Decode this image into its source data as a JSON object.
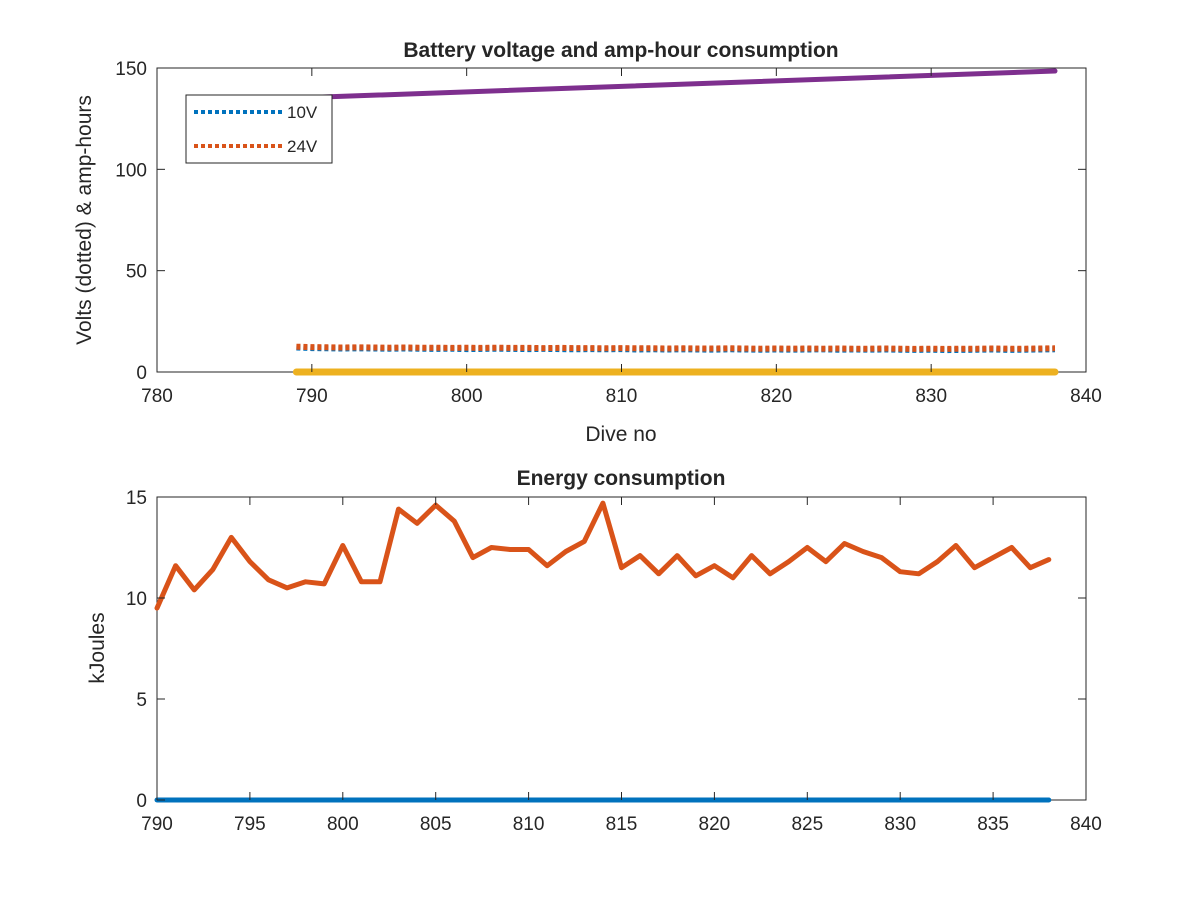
{
  "chart_data": [
    {
      "type": "line",
      "title": "Battery voltage and amp-hour consumption",
      "xlabel": "Dive no",
      "ylabel": "Volts (dotted) & amp-hours",
      "xlim": [
        780,
        840
      ],
      "ylim": [
        0,
        150
      ],
      "xticks": [
        780,
        790,
        800,
        810,
        820,
        830,
        840
      ],
      "yticks": [
        0,
        50,
        100,
        150
      ],
      "grid": false,
      "legend": {
        "location": "top-left",
        "entries": [
          {
            "label": "10V",
            "color": "#0072BD",
            "style": "dotted"
          },
          {
            "label": "24V",
            "color": "#D95319",
            "style": "dotted"
          }
        ]
      },
      "series": [
        {
          "name": "10V",
          "color": "#0072BD",
          "style": "dotted",
          "x": [
            789,
            790,
            791,
            792,
            793,
            794,
            795,
            796,
            797,
            798,
            799,
            800,
            801,
            802,
            803,
            804,
            805,
            806,
            807,
            808,
            809,
            810,
            811,
            812,
            813,
            814,
            815,
            816,
            817,
            818,
            819,
            820,
            821,
            822,
            823,
            824,
            825,
            826,
            827,
            828,
            829,
            830,
            831,
            832,
            833,
            834,
            835,
            836,
            837,
            838
          ],
          "values": [
            12.1,
            11.8,
            11.7,
            11.6,
            11.7,
            11.6,
            11.5,
            11.6,
            11.5,
            11.4,
            11.5,
            11.3,
            11.4,
            11.5,
            11.4,
            11.3,
            11.4,
            11.3,
            11.2,
            11.3,
            11.2,
            11.3,
            11.1,
            11.2,
            11.1,
            11.2,
            11.1,
            11.0,
            11.2,
            11.1,
            11.0,
            11.1,
            11.0,
            11.1,
            11.2,
            11.0,
            11.1,
            11.0,
            11.1,
            11.0,
            10.9,
            11.0,
            10.8,
            10.9,
            11.0,
            11.1,
            10.9,
            11.0,
            11.1,
            11.2
          ]
        },
        {
          "name": "24V",
          "color": "#D95319",
          "style": "dotted",
          "x": [
            789,
            790,
            791,
            792,
            793,
            794,
            795,
            796,
            797,
            798,
            799,
            800,
            801,
            802,
            803,
            804,
            805,
            806,
            807,
            808,
            809,
            810,
            811,
            812,
            813,
            814,
            815,
            816,
            817,
            818,
            819,
            820,
            821,
            822,
            823,
            824,
            825,
            826,
            827,
            828,
            829,
            830,
            831,
            832,
            833,
            834,
            835,
            836,
            837,
            838
          ],
          "values": [
            12.5,
            12.3,
            12.2,
            12.1,
            12.2,
            12.1,
            12.0,
            12.1,
            12.0,
            12.0,
            11.9,
            12.0,
            11.9,
            12.0,
            11.9,
            11.9,
            11.8,
            11.9,
            11.8,
            11.8,
            11.7,
            11.8,
            11.7,
            11.7,
            11.6,
            11.7,
            11.6,
            11.6,
            11.7,
            11.6,
            11.5,
            11.6,
            11.5,
            11.6,
            11.5,
            11.6,
            11.5,
            11.5,
            11.6,
            11.5,
            11.4,
            11.5,
            11.4,
            11.5,
            11.5,
            11.6,
            11.5,
            11.5,
            11.6,
            11.7
          ]
        },
        {
          "color": "#EDB120",
          "style": "solid",
          "x": [
            789,
            838
          ],
          "values": [
            0,
            0
          ]
        },
        {
          "color": "#7E2F8E",
          "style": "solid",
          "x": [
            790,
            838
          ],
          "values": [
            135.5,
            148.5
          ]
        }
      ]
    },
    {
      "type": "line",
      "title": "Energy consumption",
      "xlabel": "",
      "ylabel": "kJoules",
      "xlim": [
        790,
        840
      ],
      "ylim": [
        0,
        15
      ],
      "xticks": [
        790,
        795,
        800,
        805,
        810,
        815,
        820,
        825,
        830,
        835,
        840
      ],
      "yticks": [
        0,
        5,
        10,
        15
      ],
      "grid": false,
      "series": [
        {
          "color": "#D95319",
          "style": "solid",
          "x": [
            790,
            791,
            792,
            793,
            794,
            795,
            796,
            797,
            798,
            799,
            800,
            801,
            802,
            803,
            804,
            805,
            806,
            807,
            808,
            809,
            810,
            811,
            812,
            813,
            814,
            815,
            816,
            817,
            818,
            819,
            820,
            821,
            822,
            823,
            824,
            825,
            826,
            827,
            828,
            829,
            830,
            831,
            832,
            833,
            834,
            835,
            836,
            837,
            838
          ],
          "values": [
            9.5,
            11.6,
            10.4,
            11.4,
            13.0,
            11.8,
            10.9,
            10.5,
            10.8,
            10.7,
            12.6,
            10.8,
            10.8,
            14.4,
            13.7,
            14.6,
            13.8,
            12.0,
            12.5,
            12.4,
            12.4,
            11.6,
            12.3,
            12.8,
            14.7,
            11.5,
            12.1,
            11.2,
            12.1,
            11.1,
            11.6,
            11.0,
            12.1,
            11.2,
            11.8,
            12.5,
            11.8,
            12.7,
            12.3,
            12.0,
            11.3,
            11.2,
            11.8,
            12.6,
            11.5,
            12.0,
            12.5,
            11.5,
            11.9
          ]
        },
        {
          "color": "#0072BD",
          "style": "solid",
          "x": [
            790,
            838
          ],
          "values": [
            0,
            0
          ]
        }
      ]
    }
  ]
}
